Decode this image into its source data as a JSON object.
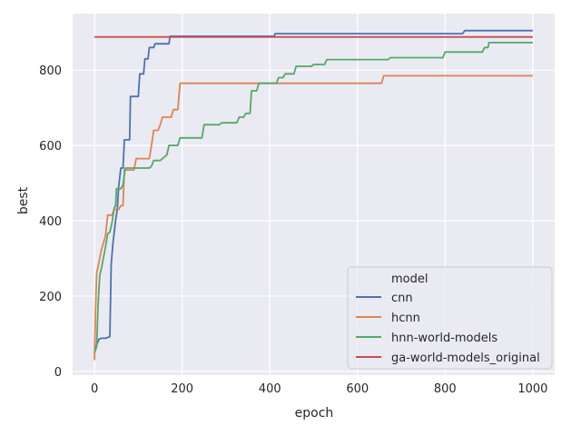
{
  "chart_data": {
    "type": "line",
    "title": "",
    "xlabel": "epoch",
    "ylabel": "best",
    "xlim": [
      -50,
      1050
    ],
    "ylim": [
      -10,
      950
    ],
    "xticks": [
      0,
      200,
      400,
      600,
      800,
      1000
    ],
    "yticks": [
      0,
      200,
      400,
      600,
      800
    ],
    "grid": true,
    "legend": {
      "title": "model",
      "placement": "lower-right"
    },
    "series": [
      {
        "name": "cnn",
        "color": "#4c72b0",
        "points": [
          [
            0,
            55
          ],
          [
            5,
            70
          ],
          [
            10,
            85
          ],
          [
            15,
            88
          ],
          [
            25,
            88
          ],
          [
            35,
            92
          ],
          [
            38,
            285
          ],
          [
            42,
            340
          ],
          [
            48,
            400
          ],
          [
            52,
            430
          ],
          [
            55,
            490
          ],
          [
            60,
            540
          ],
          [
            65,
            540
          ],
          [
            68,
            615
          ],
          [
            80,
            615
          ],
          [
            82,
            730
          ],
          [
            100,
            730
          ],
          [
            103,
            790
          ],
          [
            112,
            790
          ],
          [
            115,
            830
          ],
          [
            122,
            830
          ],
          [
            125,
            860
          ],
          [
            135,
            860
          ],
          [
            138,
            870
          ],
          [
            170,
            870
          ],
          [
            172,
            890
          ],
          [
            410,
            890
          ],
          [
            412,
            897
          ],
          [
            840,
            897
          ],
          [
            845,
            905
          ],
          [
            1000,
            905
          ]
        ]
      },
      {
        "name": "hcnn",
        "color": "#dd8452",
        "points": [
          [
            0,
            30
          ],
          [
            2,
            150
          ],
          [
            5,
            260
          ],
          [
            10,
            290
          ],
          [
            15,
            320
          ],
          [
            20,
            340
          ],
          [
            25,
            360
          ],
          [
            30,
            415
          ],
          [
            40,
            415
          ],
          [
            45,
            430
          ],
          [
            55,
            430
          ],
          [
            60,
            440
          ],
          [
            65,
            440
          ],
          [
            68,
            535
          ],
          [
            90,
            535
          ],
          [
            95,
            565
          ],
          [
            125,
            565
          ],
          [
            130,
            600
          ],
          [
            135,
            640
          ],
          [
            145,
            640
          ],
          [
            150,
            655
          ],
          [
            155,
            675
          ],
          [
            175,
            675
          ],
          [
            180,
            695
          ],
          [
            190,
            695
          ],
          [
            195,
            765
          ],
          [
            655,
            765
          ],
          [
            660,
            785
          ],
          [
            1000,
            785
          ]
        ]
      },
      {
        "name": "hnn-world-models",
        "color": "#55a868",
        "points": [
          [
            0,
            50
          ],
          [
            5,
            65
          ],
          [
            8,
            175
          ],
          [
            12,
            255
          ],
          [
            15,
            270
          ],
          [
            20,
            300
          ],
          [
            25,
            330
          ],
          [
            30,
            365
          ],
          [
            35,
            370
          ],
          [
            40,
            395
          ],
          [
            45,
            435
          ],
          [
            48,
            440
          ],
          [
            50,
            485
          ],
          [
            60,
            485
          ],
          [
            65,
            495
          ],
          [
            70,
            540
          ],
          [
            125,
            540
          ],
          [
            130,
            545
          ],
          [
            135,
            560
          ],
          [
            150,
            560
          ],
          [
            160,
            570
          ],
          [
            165,
            575
          ],
          [
            170,
            600
          ],
          [
            190,
            600
          ],
          [
            195,
            620
          ],
          [
            245,
            620
          ],
          [
            250,
            655
          ],
          [
            285,
            655
          ],
          [
            290,
            660
          ],
          [
            325,
            660
          ],
          [
            330,
            675
          ],
          [
            340,
            675
          ],
          [
            345,
            685
          ],
          [
            355,
            685
          ],
          [
            358,
            745
          ],
          [
            370,
            745
          ],
          [
            375,
            765
          ],
          [
            415,
            765
          ],
          [
            420,
            780
          ],
          [
            430,
            780
          ],
          [
            435,
            790
          ],
          [
            455,
            790
          ],
          [
            460,
            810
          ],
          [
            495,
            810
          ],
          [
            500,
            815
          ],
          [
            525,
            815
          ],
          [
            530,
            828
          ],
          [
            670,
            828
          ],
          [
            675,
            833
          ],
          [
            795,
            833
          ],
          [
            800,
            848
          ],
          [
            885,
            848
          ],
          [
            890,
            860
          ],
          [
            898,
            860
          ],
          [
            900,
            873
          ],
          [
            1000,
            873
          ]
        ]
      },
      {
        "name": "ga-world-models_original",
        "color": "#c44e52",
        "points": [
          [
            0,
            888
          ],
          [
            1000,
            888
          ]
        ]
      }
    ]
  }
}
